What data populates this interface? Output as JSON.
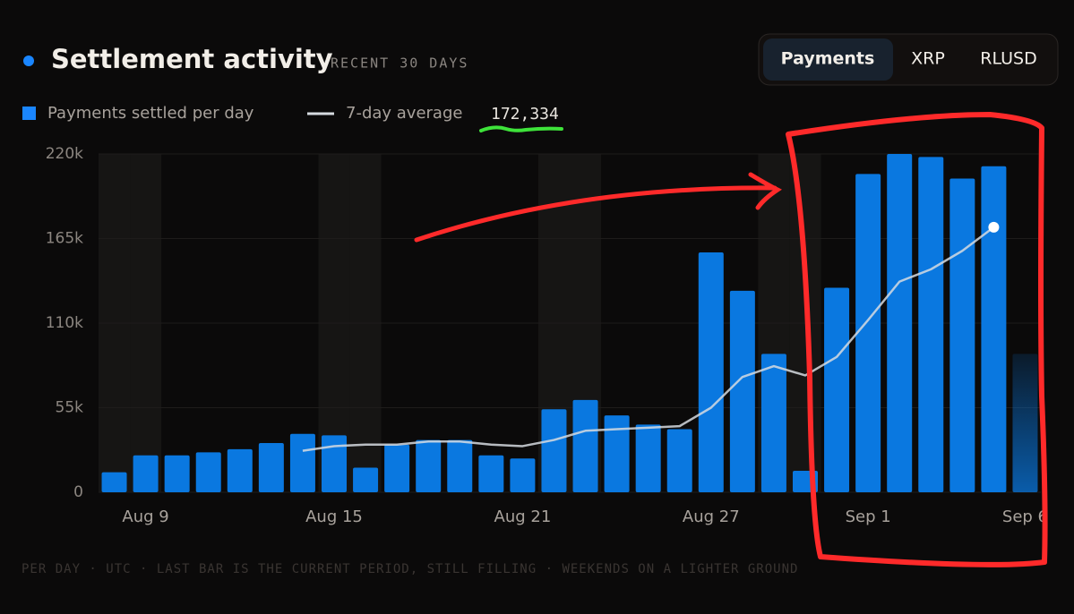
{
  "header": {
    "title": "Settlement activity",
    "subtitle": "RECENT 30 DAYS"
  },
  "tabs": [
    "Payments",
    "XRP",
    "RLUSD"
  ],
  "active_tab": 0,
  "legend_average": "172,334",
  "chart_data": {
    "type": "bar",
    "categories": [
      null,
      "Aug 9",
      null,
      null,
      null,
      null,
      null,
      "Aug 15",
      null,
      null,
      null,
      null,
      null,
      "Aug 21",
      null,
      null,
      null,
      null,
      null,
      "Aug 27",
      null,
      null,
      null,
      null,
      "Sep 1",
      null,
      null,
      null,
      null,
      "Sep 6"
    ],
    "series": [
      {
        "name": "Payments settled per day",
        "color": "#0a78e0",
        "values": [
          13000,
          24000,
          24000,
          26000,
          28000,
          32000,
          38000,
          37000,
          16000,
          31000,
          34000,
          34000,
          24000,
          22000,
          54000,
          60000,
          50000,
          44000,
          41000,
          156000,
          131000,
          90000,
          14000,
          133000,
          207000,
          220000,
          218000,
          204000,
          212000,
          90000
        ]
      },
      {
        "name": "7-day average",
        "color": "#d6dbe0",
        "values": [
          null,
          null,
          null,
          null,
          null,
          null,
          27000,
          30000,
          31000,
          31000,
          33000,
          33000,
          31000,
          30000,
          34000,
          40000,
          41000,
          42000,
          43000,
          55000,
          75000,
          82000,
          76000,
          88000,
          112000,
          137000,
          145000,
          157000,
          172334,
          null
        ]
      }
    ],
    "ylim": [
      0,
      220000
    ],
    "yticks": [
      0,
      {
        "value": 55000,
        "label": "55k"
      },
      {
        "value": 110000,
        "label": "110k"
      },
      {
        "value": 165000,
        "label": "165k"
      },
      {
        "value": 220000,
        "label": "220k"
      }
    ],
    "shaded_categories": [
      0,
      1,
      7,
      8,
      14,
      15,
      21,
      22
    ],
    "last_bar_filling": true
  },
  "footer": "PER DAY · UTC · LAST BAR IS THE CURRENT PERIOD, STILL FILLING · WEEKENDS ON A LIGHTER GROUND"
}
